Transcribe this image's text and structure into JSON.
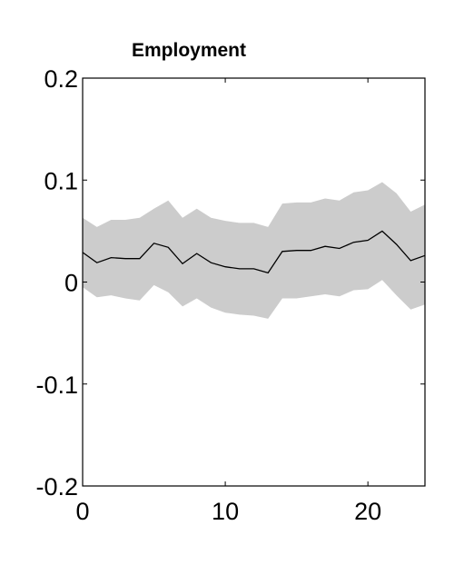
{
  "chart_data": {
    "type": "line",
    "title": "Employment",
    "xlabel": "",
    "ylabel": "",
    "xlim": [
      0,
      24
    ],
    "ylim": [
      -0.2,
      0.2
    ],
    "xticks": [
      0,
      10,
      20
    ],
    "yticks": [
      -0.2,
      -0.1,
      0,
      0.1,
      0.2
    ],
    "xtick_labels": [
      "0",
      "10",
      "20"
    ],
    "ytick_labels": [
      "-0.2",
      "-0.1",
      "0",
      "0.1",
      "0.2"
    ],
    "grid": false,
    "legend": "none",
    "x": [
      0,
      1,
      2,
      3,
      4,
      5,
      6,
      7,
      8,
      9,
      10,
      11,
      12,
      13,
      14,
      15,
      16,
      17,
      18,
      19,
      20,
      21,
      22,
      23,
      24
    ],
    "series": [
      {
        "role": "estimate",
        "values": [
          0.029,
          0.019,
          0.024,
          0.023,
          0.023,
          0.038,
          0.034,
          0.018,
          0.028,
          0.019,
          0.015,
          0.013,
          0.013,
          0.009,
          0.03,
          0.031,
          0.031,
          0.035,
          0.033,
          0.039,
          0.041,
          0.05,
          0.037,
          0.021,
          0.026
        ]
      },
      {
        "role": "upper_band",
        "values": [
          0.063,
          0.054,
          0.061,
          0.061,
          0.063,
          0.072,
          0.08,
          0.063,
          0.072,
          0.063,
          0.06,
          0.058,
          0.058,
          0.054,
          0.077,
          0.078,
          0.078,
          0.082,
          0.08,
          0.088,
          0.09,
          0.098,
          0.087,
          0.069,
          0.076
        ]
      },
      {
        "role": "lower_band",
        "values": [
          -0.005,
          -0.015,
          -0.013,
          -0.016,
          -0.018,
          -0.003,
          -0.01,
          -0.024,
          -0.016,
          -0.025,
          -0.03,
          -0.032,
          -0.033,
          -0.036,
          -0.016,
          -0.016,
          -0.014,
          -0.012,
          -0.014,
          -0.008,
          -0.007,
          0.002,
          -0.013,
          -0.027,
          -0.022
        ]
      }
    ],
    "colors": {
      "band": "#cccccc",
      "line": "#000000",
      "axes": "#000000"
    }
  }
}
